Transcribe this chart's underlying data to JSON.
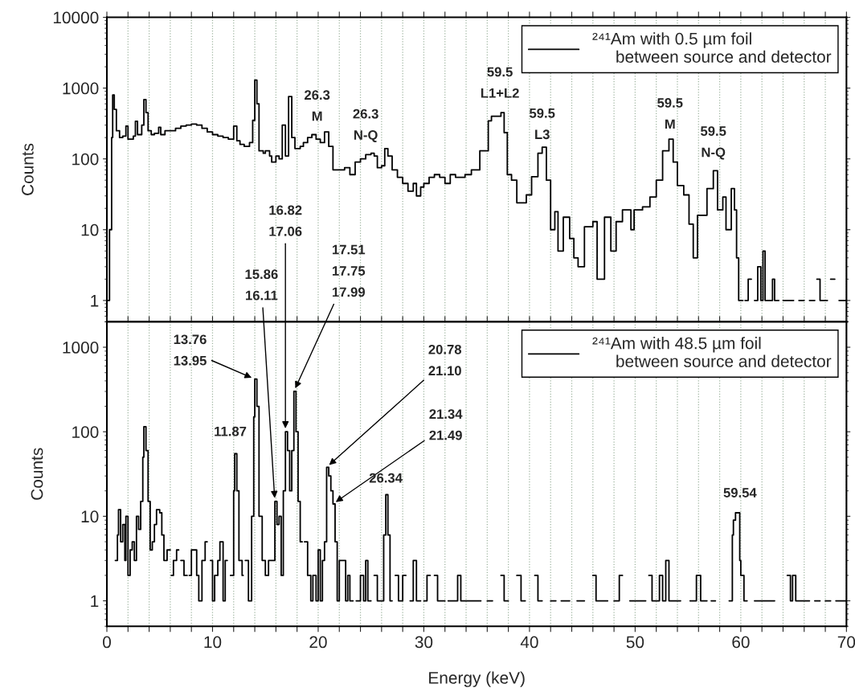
{
  "chart_data": [
    {
      "type": "step",
      "ylabel": "Counts",
      "log": true,
      "grid": "x",
      "legend": "top right",
      "tick_labels": "y",
      "xlim": [
        0,
        70
      ],
      "xticks": [
        {
          "value": 0,
          "label": null
        },
        {
          "value": 2,
          "label": null
        },
        {
          "value": 4,
          "label": null
        },
        {
          "value": 6,
          "label": null
        },
        {
          "value": 8,
          "label": null
        },
        {
          "value": 10,
          "label": null
        },
        {
          "value": 12,
          "label": null
        },
        {
          "value": 14,
          "label": null
        },
        {
          "value": 16,
          "label": null
        },
        {
          "value": 18,
          "label": null
        },
        {
          "value": 20,
          "label": null
        },
        {
          "value": 22,
          "label": null
        },
        {
          "value": 24,
          "label": null
        },
        {
          "value": 26,
          "label": null
        },
        {
          "value": 28,
          "label": null
        },
        {
          "value": 30,
          "label": null
        },
        {
          "value": 32,
          "label": null
        },
        {
          "value": 34,
          "label": null
        },
        {
          "value": 36,
          "label": null
        },
        {
          "value": 38,
          "label": null
        },
        {
          "value": 40,
          "label": null
        },
        {
          "value": 42,
          "label": null
        },
        {
          "value": 44,
          "label": null
        },
        {
          "value": 46,
          "label": null
        },
        {
          "value": 48,
          "label": null
        },
        {
          "value": 50,
          "label": null
        },
        {
          "value": 52,
          "label": null
        },
        {
          "value": 54,
          "label": null
        },
        {
          "value": 56,
          "label": null
        },
        {
          "value": 58,
          "label": null
        },
        {
          "value": 60,
          "label": null
        },
        {
          "value": 62,
          "label": null
        },
        {
          "value": 64,
          "label": null
        },
        {
          "value": 66,
          "label": null
        },
        {
          "value": 68,
          "label": null
        },
        {
          "value": 70,
          "label": null
        }
      ],
      "ylim": [
        0.5,
        10000
      ],
      "yticks": [
        1,
        10,
        100,
        1000,
        10000
      ],
      "annotations": [
        {
          "text": "26.3\nM",
          "x": 19.9,
          "y": 220
        },
        {
          "text": "26.3\nN-Q",
          "x": 24.5,
          "y": 115
        },
        {
          "text": "59.5\nL1+L2",
          "x": 37.2,
          "y": 450
        },
        {
          "text": "59.5\nL3",
          "x": 41.2,
          "y": 146
        },
        {
          "text": "59.5\nM",
          "x": 53.3,
          "y": 190
        },
        {
          "text": "59.5\nN-Q",
          "x": 57.4,
          "y": 68
        }
      ],
      "series": [
        {
          "name": "²⁴¹Am with 0.5 µm foil\n     between source and detector",
          "color": "#000000",
          "x": [
            0.0,
            0.25,
            0.45,
            0.55,
            0.7,
            0.9,
            1.2,
            1.5,
            1.8,
            2.0,
            2.5,
            2.7,
            2.9,
            3.3,
            3.5,
            3.7,
            3.9,
            4.2,
            4.5,
            4.9,
            5.1,
            5.5,
            6.0,
            6.5,
            7.0,
            7.5,
            8.0,
            8.5,
            9.0,
            9.5,
            10.0,
            10.5,
            11.0,
            11.5,
            12.0,
            12.3,
            12.6,
            13.0,
            13.5,
            13.8,
            14.0,
            14.2,
            14.4,
            14.8,
            15.0,
            15.4,
            15.6,
            16.0,
            16.3,
            16.6,
            16.9,
            17.2,
            17.5,
            17.8,
            18.3,
            18.6,
            19.0,
            19.4,
            19.8,
            20.2,
            20.6,
            21.0,
            21.4,
            22.0,
            22.5,
            23.0,
            23.5,
            24.0,
            24.5,
            25.0,
            25.3,
            25.6,
            26.0,
            26.3,
            26.6,
            27.0,
            27.5,
            28.0,
            28.5,
            29.0,
            29.3,
            29.7,
            30.0,
            30.5,
            31.0,
            31.5,
            32.0,
            32.5,
            33.0,
            33.5,
            33.9,
            34.5,
            35.3,
            36.1,
            36.4,
            37.3,
            37.6,
            37.9,
            38.3,
            38.8,
            39.7,
            40.2,
            40.8,
            41.2,
            41.6,
            42.0,
            42.4,
            42.7,
            43.2,
            43.8,
            44.2,
            44.6,
            45.2,
            46.0,
            46.4,
            47.1,
            47.7,
            48.2,
            48.8,
            49.6,
            49.9,
            50.7,
            51.4,
            52.0,
            52.6,
            53.2,
            53.6,
            54.0,
            54.6,
            55.1,
            55.5,
            55.9,
            56.8,
            57.4,
            57.8,
            58.3,
            58.6,
            59.1,
            59.4,
            59.6,
            59.8,
            60.0,
            60.2,
            60.4,
            60.7,
            61.0,
            61.3,
            61.6,
            61.9,
            62.1,
            62.3,
            63.0,
            63.2,
            63.6,
            64.0,
            65.0,
            65.5,
            66.0,
            66.5,
            67.0,
            67.2,
            67.5,
            68.2,
            68.5,
            68.9,
            69.3,
            70
          ],
          "values": [
            1,
            10,
            200,
            800,
            500,
            250,
            200,
            210,
            290,
            190,
            210,
            340,
            220,
            300,
            690,
            450,
            250,
            220,
            230,
            280,
            220,
            250,
            250,
            270,
            290,
            300,
            310,
            300,
            270,
            240,
            220,
            210,
            200,
            190,
            290,
            180,
            160,
            150,
            170,
            350,
            1300,
            600,
            130,
            120,
            130,
            110,
            90,
            110,
            100,
            300,
            110,
            760,
            200,
            140,
            150,
            170,
            200,
            220,
            190,
            170,
            240,
            150,
            70,
            70,
            75,
            60,
            90,
            100,
            115,
            120,
            110,
            75,
            80,
            140,
            110,
            70,
            55,
            45,
            35,
            45,
            30,
            40,
            45,
            55,
            60,
            55,
            45,
            60,
            55,
            55,
            60,
            70,
            130,
            345,
            400,
            450,
            235,
            60,
            50,
            24,
            31,
            56,
            120,
            146,
            50,
            10,
            18,
            5,
            15,
            7.5,
            4,
            3,
            11,
            13,
            2,
            15,
            5,
            13,
            19,
            10,
            19,
            21,
            29,
            50,
            130,
            190,
            90,
            42,
            31,
            12,
            4,
            16,
            38,
            68,
            19,
            29,
            10,
            38,
            19,
            4,
            1,
            1,
            null,
            1,
            2,
            null,
            1,
            3,
            1,
            5,
            1,
            2,
            1,
            null,
            1,
            null,
            1,
            null,
            1,
            null,
            2,
            1,
            null,
            2,
            null,
            1,
            1
          ]
        }
      ]
    },
    {
      "type": "step",
      "xlabel": "Energy (keV)",
      "ylabel": "Counts",
      "log": true,
      "grid": "x",
      "legend": "top right",
      "xlim": [
        0,
        70
      ],
      "xticks": [
        0,
        {
          "value": 2,
          "label": null
        },
        {
          "value": 4,
          "label": null
        },
        {
          "value": 6,
          "label": null
        },
        {
          "value": 8,
          "label": null
        },
        10,
        {
          "value": 12,
          "label": null
        },
        {
          "value": 14,
          "label": null
        },
        {
          "value": 16,
          "label": null
        },
        {
          "value": 18,
          "label": null
        },
        20,
        {
          "value": 22,
          "label": null
        },
        {
          "value": 24,
          "label": null
        },
        {
          "value": 26,
          "label": null
        },
        {
          "value": 28,
          "label": null
        },
        30,
        {
          "value": 32,
          "label": null
        },
        {
          "value": 34,
          "label": null
        },
        {
          "value": 36,
          "label": null
        },
        {
          "value": 38,
          "label": null
        },
        40,
        {
          "value": 42,
          "label": null
        },
        {
          "value": 44,
          "label": null
        },
        {
          "value": 46,
          "label": null
        },
        {
          "value": 48,
          "label": null
        },
        50,
        {
          "value": 52,
          "label": null
        },
        {
          "value": 54,
          "label": null
        },
        {
          "value": 56,
          "label": null
        },
        {
          "value": 58,
          "label": null
        },
        60,
        {
          "value": 62,
          "label": null
        },
        {
          "value": 64,
          "label": null
        },
        {
          "value": 66,
          "label": null
        },
        {
          "value": 68,
          "label": null
        },
        70
      ],
      "ylim": [
        0.5,
        2000
      ],
      "yticks": [
        1,
        10,
        100,
        1000
      ],
      "annotations": [
        {
          "text": "13.76\n13.95",
          "x": 14.0,
          "y": 420
        },
        {
          "text": "11.87",
          "x": 12.1,
          "y": 55
        },
        {
          "text": "15.86\n16.11",
          "x": 15.9,
          "y": 15
        },
        {
          "text": "16.82\n17.06",
          "x": 16.9,
          "y": 100
        },
        {
          "text": "17.51\n17.75\n17.99",
          "x": 17.7,
          "y": 300
        },
        {
          "text": "20.78\n21.10",
          "x": 20.8,
          "y": 38
        },
        {
          "text": "21.34\n21.49",
          "x": 21.4,
          "y": 14
        },
        {
          "text": "26.34",
          "x": 26.4,
          "y": 18
        },
        {
          "text": "59.54",
          "x": 59.5,
          "y": 11
        }
      ],
      "series": [
        {
          "name": "²⁴¹Am with 48.5 µm foil\n     between source and detector",
          "color": "#000000",
          "x": [
            0.8,
            1.0,
            1.1,
            1.3,
            1.5,
            1.7,
            1.8,
            2.0,
            2.2,
            2.4,
            2.6,
            2.8,
            3.0,
            3.2,
            3.4,
            3.5,
            3.7,
            3.9,
            4.1,
            4.3,
            4.5,
            4.7,
            5.0,
            5.2,
            5.4,
            5.7,
            6.0,
            6.1,
            6.3,
            6.6,
            6.8,
            7.0,
            7.3,
            7.6,
            7.8,
            8.0,
            8.2,
            8.5,
            8.7,
            9.0,
            9.3,
            9.5,
            9.8,
            10.0,
            10.2,
            10.5,
            10.7,
            11.0,
            11.2,
            11.4,
            11.7,
            12.0,
            12.1,
            12.3,
            12.5,
            12.8,
            12.9,
            13.1,
            13.4,
            13.7,
            13.9,
            14.0,
            14.2,
            14.4,
            14.7,
            15.0,
            15.3,
            15.6,
            15.9,
            16.1,
            16.3,
            16.5,
            16.7,
            16.9,
            17.1,
            17.3,
            17.5,
            17.7,
            17.9,
            18.1,
            18.3,
            18.5,
            18.7,
            19.0,
            19.3,
            19.5,
            19.8,
            20.0,
            20.2,
            20.4,
            20.6,
            20.8,
            21.0,
            21.2,
            21.4,
            21.6,
            21.8,
            22.0,
            22.3,
            22.6,
            22.8,
            23.0,
            23.3,
            23.6,
            24.0,
            24.3,
            24.5,
            24.7,
            25.0,
            25.3,
            25.6,
            26.0,
            26.2,
            26.4,
            26.6,
            26.8,
            27.0,
            27.3,
            27.6,
            28.0,
            28.3,
            28.7,
            29.0,
            29.3,
            29.7,
            30.0,
            30.3,
            30.6,
            31.0,
            31.3,
            32.0,
            32.3,
            33.0,
            33.2,
            33.5,
            35.4,
            36.0,
            36.5,
            37.3,
            37.6,
            38.0,
            38.8,
            39.2,
            39.6,
            40.5,
            40.8,
            41.2,
            42.0,
            42.5,
            43.0,
            43.8,
            44.5,
            45.2,
            46.0,
            46.3,
            47.0,
            47.4,
            48.0,
            48.5,
            48.8,
            49.5,
            50.5,
            51.0,
            51.3,
            51.6,
            52.3,
            52.6,
            52.9,
            53.2,
            54.0,
            54.3,
            55.2,
            55.8,
            56.2,
            56.8,
            57.2,
            57.6,
            58.3,
            58.9,
            59.2,
            59.3,
            59.5,
            59.8,
            59.9,
            60.0,
            60.3,
            60.6,
            61.3,
            61.8,
            62.5,
            63.2,
            64.0,
            64.4,
            64.7,
            64.9,
            65.2,
            66.0,
            66.5,
            67.0,
            67.5,
            68.0,
            68.5,
            69.0,
            69.8,
            70
          ],
          "values": [
            3,
            6,
            12,
            5,
            8,
            3,
            10,
            2,
            4,
            5,
            3,
            10,
            7,
            15,
            50,
            115,
            60,
            15,
            4,
            5,
            8,
            12,
            11,
            6,
            3,
            4,
            null,
            2,
            3,
            4,
            null,
            3,
            2,
            null,
            2,
            4,
            4,
            2,
            1,
            3,
            5,
            null,
            3,
            1,
            2,
            3,
            5,
            1,
            3,
            null,
            2,
            20,
            55,
            20,
            3,
            2,
            null,
            3,
            1,
            10,
            150,
            420,
            200,
            10,
            3,
            2,
            3,
            3,
            15,
            8,
            10,
            2,
            20,
            100,
            60,
            20,
            60,
            300,
            100,
            15,
            5,
            null,
            5,
            2,
            1,
            2,
            1,
            4,
            1,
            3,
            5,
            38,
            30,
            20,
            14,
            5,
            1,
            3,
            3,
            1,
            2,
            1,
            null,
            1,
            2,
            1,
            3,
            1,
            null,
            2,
            1,
            1,
            6,
            18,
            6,
            1,
            null,
            2,
            1,
            2,
            null,
            1,
            3,
            1,
            null,
            1,
            2,
            null,
            2,
            1,
            null,
            1,
            1,
            2,
            1,
            null,
            1,
            null,
            2,
            1,
            null,
            2,
            1,
            null,
            2,
            1,
            null,
            1,
            null,
            1,
            null,
            1,
            null,
            2,
            1,
            1,
            null,
            1,
            2,
            null,
            1,
            1,
            null,
            2,
            1,
            2,
            1,
            3,
            1,
            1,
            null,
            1,
            2,
            1,
            null,
            1,
            null,
            null,
            1,
            6,
            9,
            11,
            11,
            3,
            2,
            1,
            null,
            1,
            1,
            1,
            null,
            null,
            2,
            1,
            2,
            1,
            1,
            null,
            1,
            null,
            1,
            null,
            1,
            1,
            1
          ]
        }
      ]
    }
  ]
}
